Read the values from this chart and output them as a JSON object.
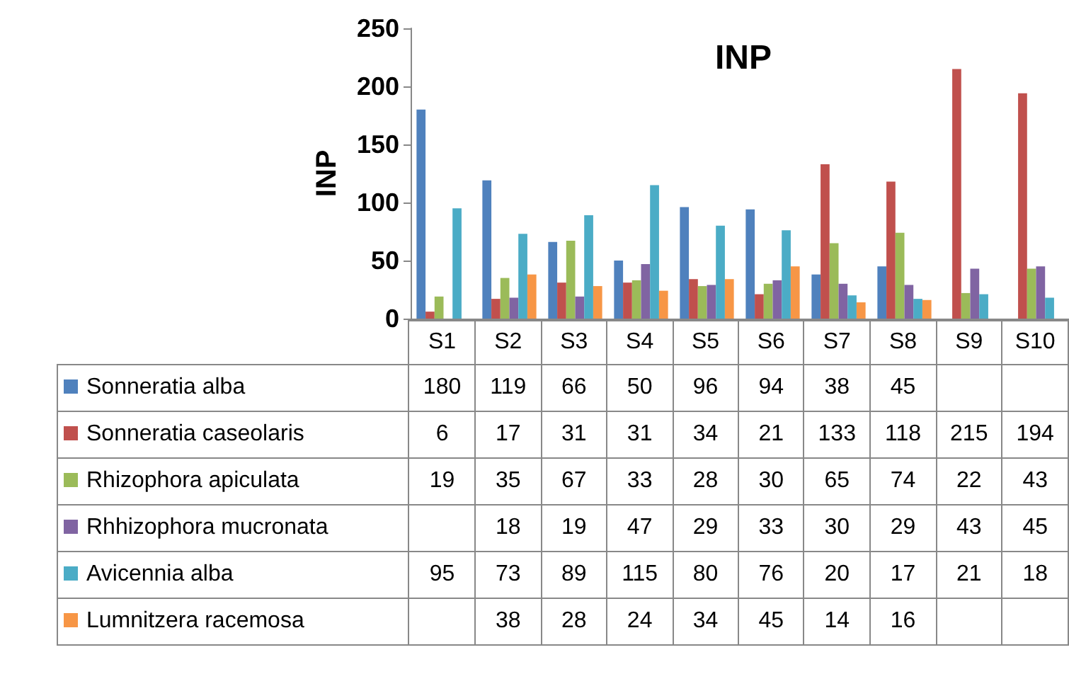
{
  "chart_data": {
    "type": "bar",
    "title": "INP",
    "ylabel": "INP",
    "categories": [
      "S1",
      "S2",
      "S3",
      "S4",
      "S5",
      "S6",
      "S7",
      "S8",
      "S9",
      "S10"
    ],
    "series": [
      {
        "name": "Sonneratia alba",
        "color": "#4f81bd",
        "values": [
          180,
          119,
          66,
          50,
          96,
          94,
          38,
          45,
          null,
          null
        ]
      },
      {
        "name": "Sonneratia caseolaris",
        "color": "#c0504d",
        "values": [
          6,
          17,
          31,
          31,
          34,
          21,
          133,
          118,
          215,
          194
        ]
      },
      {
        "name": "Rhizophora apiculata",
        "color": "#9bbb59",
        "values": [
          19,
          35,
          67,
          33,
          28,
          30,
          65,
          74,
          22,
          43
        ]
      },
      {
        "name": "Rhhizophora mucronata",
        "color": "#8064a2",
        "values": [
          null,
          18,
          19,
          47,
          29,
          33,
          30,
          29,
          43,
          45
        ]
      },
      {
        "name": "Avicennia alba",
        "color": "#4bacc6",
        "values": [
          95,
          73,
          89,
          115,
          80,
          76,
          20,
          17,
          21,
          18
        ]
      },
      {
        "name": "Lumnitzera racemosa",
        "color": "#f79646",
        "values": [
          null,
          38,
          28,
          24,
          34,
          45,
          14,
          16,
          null,
          null
        ]
      }
    ],
    "ylim": [
      0,
      250
    ],
    "yticks": [
      0,
      50,
      100,
      150,
      200,
      250
    ],
    "grid": false,
    "legend": "left",
    "data_labels": true
  }
}
